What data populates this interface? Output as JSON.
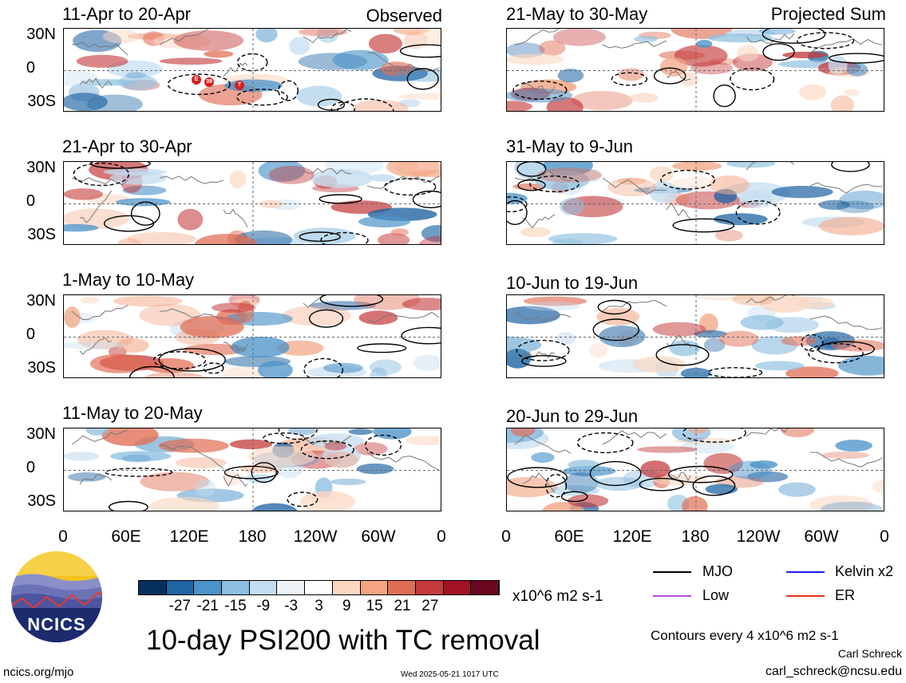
{
  "observed_label": "Observed",
  "projected_label": "Projected Sum",
  "panels_left": [
    {
      "title": "11-Apr to 20-Apr"
    },
    {
      "title": "21-Apr to 30-Apr"
    },
    {
      "title": "1-May to 10-May"
    },
    {
      "title": "11-May to 20-May"
    }
  ],
  "panels_right": [
    {
      "title": "21-May to 30-May"
    },
    {
      "title": "31-May to 9-Jun"
    },
    {
      "title": "10-Jun to 19-Jun"
    },
    {
      "title": "20-Jun to 29-Jun"
    }
  ],
  "lat_labels": [
    "30N",
    "0",
    "30S"
  ],
  "lon_labels": [
    "0",
    "60E",
    "120E",
    "180",
    "120W",
    "60W",
    "0"
  ],
  "tc_markers": [
    "E",
    "39",
    "T"
  ],
  "colorbar": {
    "colors": [
      "#08305c",
      "#1f64a3",
      "#4b93c9",
      "#8cbfe0",
      "#c4dcef",
      "#eef3f7",
      "#ffffff",
      "#fbd7c1",
      "#f3a482",
      "#e06e55",
      "#c43a3c",
      "#a01225",
      "#6b0720"
    ],
    "labels": [
      "-27",
      "-21",
      "-15",
      "-9",
      "-3",
      "3",
      "9",
      "15",
      "21",
      "27"
    ],
    "units": "x10^6 m2 s-1"
  },
  "legend": {
    "items": [
      {
        "label": "MJO",
        "color": "#000000"
      },
      {
        "label": "Kelvin x2",
        "color": "#1a1aff"
      },
      {
        "label": "Low",
        "color": "#b04fd8"
      },
      {
        "label": "ER",
        "color": "#e0331e"
      }
    ],
    "contours_note": "Contours every 4 x10^6 m2 s-1",
    "author": "Carl Schreck",
    "email": "carl_schreck@ncsu.edu"
  },
  "main_title": "10-day PSI200 with TC removal",
  "logo_text": "NCICS",
  "site": "ncics.org/mjo",
  "timestamp": "Wed 2025-05-21 1017 UTC"
}
